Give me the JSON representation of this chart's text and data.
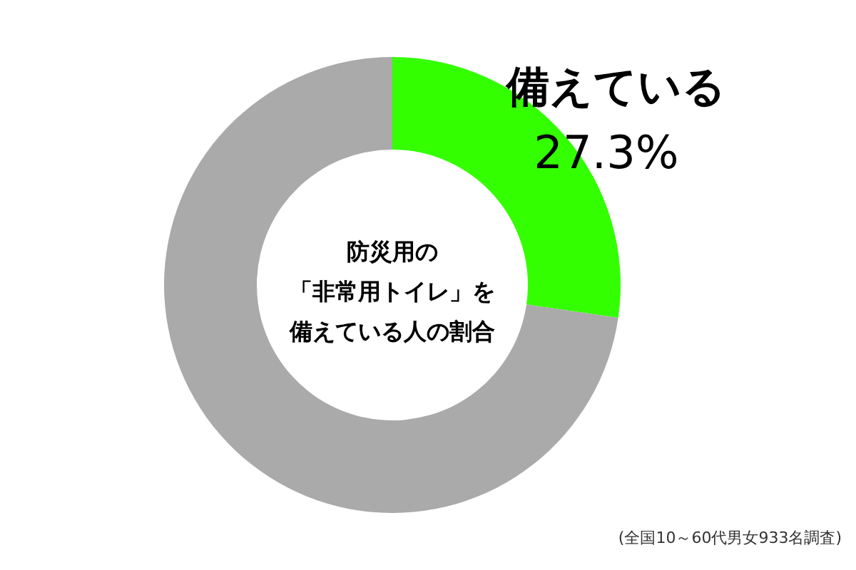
{
  "chart_data": {
    "type": "donut",
    "title": "防災用の「非常用トイレ」を備えている人の割合",
    "categories": [
      "備えている",
      null
    ],
    "values": [
      27.3,
      72.7
    ],
    "colors": [
      "#33ff00",
      "#aaaaaa"
    ],
    "value_labels": [
      "27.3%",
      null
    ],
    "annotations": [
      "(全国10～60代男女933名調査)"
    ]
  }
}
